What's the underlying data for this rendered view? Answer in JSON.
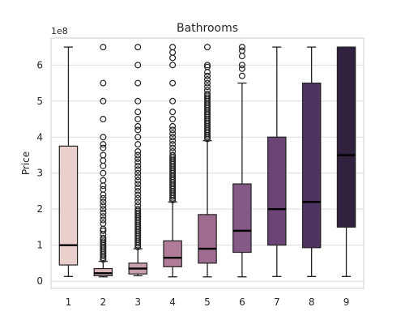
{
  "chart_data": {
    "type": "box",
    "title": "Bathrooms",
    "xlabel": "",
    "ylabel": "Price",
    "offset_text": "1e8",
    "ylim": [
      -0.2,
      6.75
    ],
    "yticks": [
      0,
      1,
      2,
      3,
      4,
      5,
      6
    ],
    "grid": true,
    "categories": [
      "1",
      "2",
      "3",
      "4",
      "5",
      "6",
      "7",
      "8",
      "9"
    ],
    "boxes": [
      {
        "category": "1",
        "whisker_low": 0.13,
        "q1": 0.45,
        "median": 1.0,
        "q3": 3.75,
        "whisker_high": 6.5,
        "color": "#ead0cc",
        "outliers": []
      },
      {
        "category": "2",
        "whisker_low": 0.12,
        "q1": 0.15,
        "median": 0.22,
        "q3": 0.35,
        "whisker_high": 0.55,
        "color": "#d8b3b8",
        "outliers": [
          0.6,
          0.65,
          0.7,
          0.75,
          0.8,
          0.85,
          0.9,
          0.95,
          1.0,
          1.05,
          1.1,
          1.15,
          1.2,
          1.3,
          1.4,
          1.45,
          1.6,
          1.7,
          1.8,
          1.9,
          2.0,
          2.1,
          2.2,
          2.3,
          2.4,
          2.55,
          2.65,
          2.8,
          3.0,
          3.2,
          3.35,
          3.5,
          3.7,
          3.8,
          4.0,
          4.5,
          5.0,
          5.5,
          6.5
        ]
      },
      {
        "category": "3",
        "whisker_low": 0.15,
        "q1": 0.2,
        "median": 0.35,
        "q3": 0.5,
        "whisker_high": 0.9,
        "color": "#c89fab",
        "outliers": [
          0.95,
          1.0,
          1.05,
          1.1,
          1.15,
          1.2,
          1.25,
          1.3,
          1.35,
          1.4,
          1.45,
          1.5,
          1.55,
          1.6,
          1.65,
          1.7,
          1.75,
          1.8,
          1.85,
          1.9,
          1.95,
          2.0,
          2.1,
          2.2,
          2.3,
          2.4,
          2.5,
          2.6,
          2.7,
          2.8,
          2.9,
          3.0,
          3.1,
          3.2,
          3.3,
          3.4,
          3.5,
          3.6,
          3.8,
          4.0,
          4.2,
          4.3,
          4.5,
          4.7,
          5.0,
          5.5,
          6.0,
          6.5
        ]
      },
      {
        "category": "4",
        "whisker_low": 0.12,
        "q1": 0.4,
        "median": 0.65,
        "q3": 1.12,
        "whisker_high": 2.2,
        "color": "#b07c97",
        "outliers": [
          2.25,
          2.3,
          2.35,
          2.4,
          2.45,
          2.5,
          2.55,
          2.6,
          2.65,
          2.7,
          2.75,
          2.8,
          2.85,
          2.9,
          2.95,
          3.0,
          3.05,
          3.1,
          3.15,
          3.2,
          3.25,
          3.3,
          3.35,
          3.4,
          3.45,
          3.5,
          3.6,
          3.7,
          3.8,
          3.9,
          4.0,
          4.1,
          4.2,
          4.3,
          4.5,
          4.7,
          5.0,
          5.5,
          6.0,
          6.2,
          6.35,
          6.5
        ]
      },
      {
        "category": "5",
        "whisker_low": 0.12,
        "q1": 0.5,
        "median": 0.9,
        "q3": 1.85,
        "whisker_high": 3.9,
        "color": "#9d6c8f",
        "outliers": [
          3.95,
          4.0,
          4.05,
          4.1,
          4.15,
          4.2,
          4.25,
          4.3,
          4.35,
          4.4,
          4.45,
          4.5,
          4.55,
          4.6,
          4.65,
          4.7,
          4.75,
          4.8,
          4.85,
          4.9,
          4.95,
          5.0,
          5.05,
          5.1,
          5.15,
          5.2,
          5.3,
          5.4,
          5.5,
          5.6,
          5.7,
          5.8,
          5.95,
          6.0,
          6.5
        ]
      },
      {
        "category": "6",
        "whisker_low": 0.12,
        "q1": 0.8,
        "median": 1.4,
        "q3": 2.7,
        "whisker_high": 5.5,
        "color": "#855985",
        "outliers": [
          5.7,
          5.9,
          6.0,
          6.25,
          6.4,
          6.5
        ]
      },
      {
        "category": "7",
        "whisker_low": 0.13,
        "q1": 1.0,
        "median": 2.0,
        "q3": 4.0,
        "whisker_high": 6.5,
        "color": "#6a4475",
        "outliers": []
      },
      {
        "category": "8",
        "whisker_low": 0.13,
        "q1": 0.93,
        "median": 2.2,
        "q3": 5.5,
        "whisker_high": 6.5,
        "color": "#4e3461",
        "outliers": []
      },
      {
        "category": "9",
        "whisker_low": 0.13,
        "q1": 1.5,
        "median": 3.5,
        "q3": 6.5,
        "whisker_high": 6.5,
        "color": "#30213f",
        "outliers": []
      }
    ]
  }
}
